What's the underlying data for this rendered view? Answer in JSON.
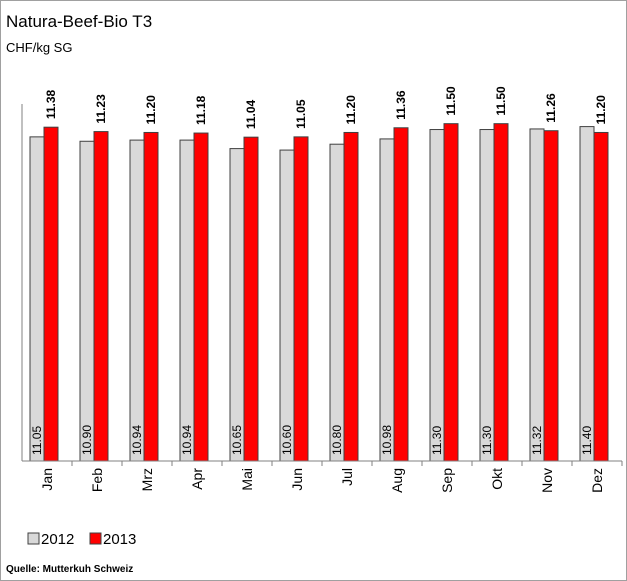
{
  "chart_data": {
    "type": "bar",
    "title": "Natura-Beef-Bio T3",
    "subtitle": "CHF/kg SG",
    "source": "Quelle: Mutterkuh Schweiz",
    "categories": [
      "Jan",
      "Feb",
      "Mrz",
      "Apr",
      "Mai",
      "Jun",
      "Jul",
      "Aug",
      "Sep",
      "Okt",
      "Nov",
      "Dez"
    ],
    "series": [
      {
        "name": "2012",
        "color": "#d9d9d9",
        "values": [
          11.05,
          10.9,
          10.94,
          10.94,
          10.65,
          10.6,
          10.8,
          10.98,
          11.3,
          11.3,
          11.32,
          11.4
        ],
        "value_labels": [
          "11.05",
          "10.90",
          "10.94",
          "10.94",
          "10.65",
          "10.60",
          "10.80",
          "10.98",
          "11.30",
          "11.30",
          "11.32",
          "11.40"
        ]
      },
      {
        "name": "2013",
        "color": "#ff0000",
        "values": [
          11.38,
          11.23,
          11.2,
          11.18,
          11.04,
          11.05,
          11.2,
          11.36,
          11.5,
          11.5,
          11.26,
          11.2
        ],
        "value_labels": [
          "11.38",
          "11.23",
          "11.20",
          "11.18",
          "11.04",
          "11.05",
          "11.20",
          "11.36",
          "11.50",
          "11.50",
          "11.26",
          "11.20"
        ]
      }
    ],
    "ylim": [
      0,
      12
    ]
  }
}
